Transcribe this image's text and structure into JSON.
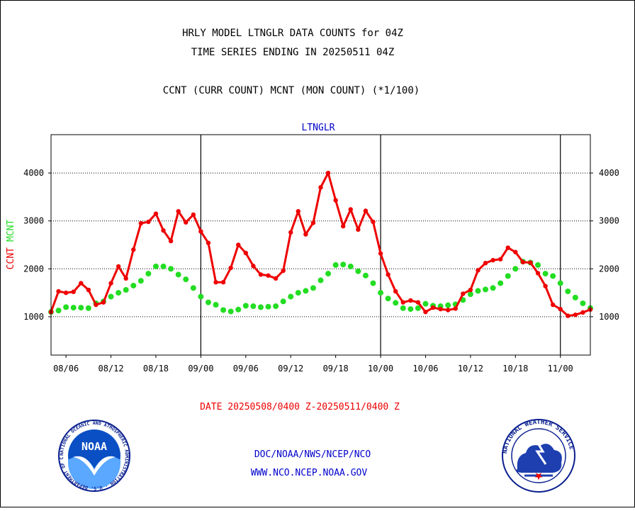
{
  "header": {
    "title_line1": "HRLY MODEL LTNGLR DATA COUNTS for 04Z",
    "title_line2": "TIME SERIES ENDING IN 20250511 04Z",
    "legend_line": "CCNT (CURR COUNT) MCNT (MON COUNT) (*1/100)",
    "plot_label": "LTNGLR"
  },
  "footer": {
    "date_range": "DATE 20250508/0400 Z-20250511/0400 Z",
    "org_line": "DOC/NOAA/NWS/NCEP/NCO",
    "url_line": "WWW.NCO.NCEP.NOAA.GOV"
  },
  "logos": {
    "noaa": {
      "text": "NOAA",
      "ring_text": "NATIONAL OCEANIC AND ATMOSPHERIC ADMINISTRATION · U.S. DEPARTMENT OF COMMERCE"
    },
    "nws": {
      "ring_text": "NATIONAL WEATHER SERVICE"
    }
  },
  "colors": {
    "ccnt": "#ee0000",
    "mcnt": "#22dd22",
    "grid": "#000000",
    "footer_blue": "#0000cc"
  },
  "chart_data": {
    "type": "line",
    "title": "HRLY MODEL LTNGLR DATA COUNTS for 04Z",
    "subtitle": "TIME SERIES ENDING IN 20250511 04Z",
    "ylabel_left": [
      "CCNT",
      "MCNT"
    ],
    "ylabel_right": "",
    "xlabel": "DATE 20250508/0400 Z-20250511/0400 Z",
    "ylim": [
      200,
      4800
    ],
    "yticks": [
      1000,
      2000,
      3000,
      4000
    ],
    "grid": "horizontal dotted at y ticks; solid vertical at day boundaries",
    "x_tick_labels": [
      "08/06",
      "08/12",
      "08/18",
      "09/00",
      "09/06",
      "09/12",
      "09/18",
      "10/00",
      "10/06",
      "10/12",
      "10/18",
      "11/00"
    ],
    "x_tick_hours": [
      2,
      8,
      14,
      20,
      26,
      32,
      38,
      44,
      50,
      56,
      62,
      68
    ],
    "x_range_hours": [
      0,
      72
    ],
    "day_boundaries_hours": [
      20,
      44,
      68
    ],
    "x_label": "hours since 08/04",
    "series": [
      {
        "name": "CCNT",
        "color": "#ee0000",
        "values": [
          1100,
          1530,
          1500,
          1520,
          1700,
          1560,
          1250,
          1300,
          1700,
          2050,
          1800,
          2400,
          2950,
          2980,
          3150,
          2800,
          2580,
          3200,
          2970,
          3130,
          2780,
          2540,
          1720,
          1720,
          2020,
          2500,
          2330,
          2060,
          1880,
          1860,
          1800,
          1960,
          2760,
          3200,
          2720,
          2960,
          3700,
          4000,
          3430,
          2890,
          3240,
          2820,
          3210,
          2980,
          2320,
          1880,
          1530,
          1300,
          1340,
          1300,
          1100,
          1190,
          1160,
          1140,
          1170,
          1480,
          1560,
          1970,
          2120,
          2180,
          2200,
          2440,
          2350,
          2140,
          2130,
          1910,
          1640,
          1250,
          1160,
          1020,
          1040,
          1090,
          1150
        ]
      },
      {
        "name": "MCNT",
        "color": "#22dd22",
        "values": [
          1100,
          1130,
          1200,
          1190,
          1190,
          1180,
          1280,
          1320,
          1420,
          1500,
          1560,
          1650,
          1750,
          1900,
          2050,
          2050,
          2000,
          1880,
          1780,
          1600,
          1420,
          1300,
          1250,
          1140,
          1110,
          1150,
          1230,
          1220,
          1200,
          1210,
          1220,
          1320,
          1420,
          1500,
          1540,
          1600,
          1760,
          1900,
          2080,
          2090,
          2050,
          1950,
          1860,
          1700,
          1500,
          1380,
          1290,
          1180,
          1160,
          1180,
          1270,
          1230,
          1220,
          1240,
          1260,
          1350,
          1470,
          1540,
          1570,
          1600,
          1700,
          1850,
          2000,
          2150,
          2130,
          2080,
          1900,
          1850,
          1700,
          1530,
          1400,
          1280,
          1180
        ]
      }
    ]
  }
}
